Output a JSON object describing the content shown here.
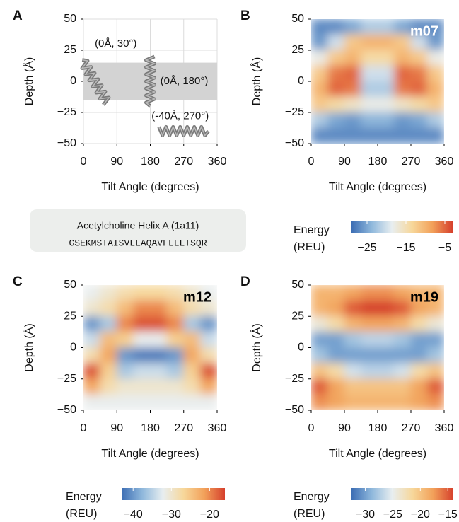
{
  "chart_data": [
    {
      "type": "helix-map",
      "panel": "A",
      "xlabel": "Tilt Angle (degrees)",
      "ylabel": "Depth (Å)",
      "xlim": [
        0,
        360
      ],
      "ylim": [
        -50,
        50
      ],
      "xticks": [
        0,
        90,
        180,
        270,
        360
      ],
      "yticks": [
        {
          "value": -50,
          "label": "−50"
        },
        {
          "value": -25,
          "label": "−25"
        },
        0,
        25,
        50
      ],
      "grid": true,
      "band": [
        -15,
        15
      ],
      "band_color": "#d3d3d3",
      "color": "#7a7a7a",
      "helices": [
        {
          "x": 30,
          "y": 0,
          "text": "(0Å, 30°)"
        },
        {
          "x": 180,
          "y": 0,
          "text": "(0Å, 180°)"
        },
        {
          "x": 270,
          "y": -40,
          "text": "(-40Å, 270°)"
        }
      ]
    },
    {
      "type": "heatmap",
      "panel": "B",
      "title": "m07",
      "title_color": "#ffffff",
      "xlabel": "Tilt Angle (degrees)",
      "ylabel": "Depth (Å)",
      "xlim": [
        0,
        360
      ],
      "ylim": [
        -50,
        50
      ],
      "xticks": [
        0,
        90,
        180,
        270,
        360
      ],
      "yticks": [
        {
          "value": -50,
          "label": "−50"
        },
        {
          "value": -25,
          "label": "−25"
        },
        0,
        25,
        50
      ],
      "x": [
        22.5,
        67.5,
        112.5,
        157.5,
        202.5,
        247.5,
        292.5,
        337.5
      ],
      "y": [
        43.75,
        31.25,
        18.75,
        6.25,
        -6.25,
        -18.75,
        -31.25,
        -43.75
      ],
      "values": [
        [
          -27,
          -27,
          -25,
          -22,
          -22,
          -25,
          -27,
          -27
        ],
        [
          -26,
          -20,
          -12,
          -10,
          -10,
          -12,
          -20,
          -26
        ],
        [
          -18,
          -12,
          -10,
          -14,
          -14,
          -10,
          -12,
          -18
        ],
        [
          -12,
          -6,
          -5,
          -20,
          -20,
          -5,
          -6,
          -12
        ],
        [
          -10,
          -5,
          -6,
          -22,
          -22,
          -6,
          -5,
          -10
        ],
        [
          -12,
          -14,
          -16,
          -18,
          -18,
          -16,
          -14,
          -12
        ],
        [
          -22,
          -25,
          -26,
          -24,
          -24,
          -26,
          -25,
          -22
        ],
        [
          -27,
          -27,
          -27,
          -27,
          -27,
          -27,
          -27,
          -27
        ]
      ],
      "colormap": [
        "#3d6eb4",
        "#8fb8dc",
        "#e8eef0",
        "#f7d79a",
        "#f2a15a",
        "#d6402c"
      ],
      "zlim": [
        -29,
        -3
      ],
      "colorbar_title": "Energy",
      "colorbar_unit": "(REU)",
      "cticks": [
        {
          "value": -25,
          "label": "−25"
        },
        {
          "value": -15,
          "label": "−15"
        },
        {
          "value": -5,
          "label": "−5"
        }
      ]
    },
    {
      "type": "heatmap",
      "panel": "C",
      "title": "m12",
      "title_color": "#000000",
      "xlabel": "Tilt Angle (degrees)",
      "ylabel": "Depth (Å)",
      "xlim": [
        0,
        360
      ],
      "ylim": [
        -50,
        50
      ],
      "xticks": [
        0,
        90,
        180,
        270,
        360
      ],
      "yticks": [
        {
          "value": -50,
          "label": "−50"
        },
        {
          "value": -25,
          "label": "−25"
        },
        0,
        25,
        50
      ],
      "x": [
        22.5,
        67.5,
        112.5,
        157.5,
        202.5,
        247.5,
        292.5,
        337.5
      ],
      "y": [
        43.75,
        31.25,
        18.75,
        6.25,
        -6.25,
        -18.75,
        -31.25,
        -43.75
      ],
      "values": [
        [
          -32,
          -30,
          -28,
          -27,
          -27,
          -28,
          -30,
          -32
        ],
        [
          -30,
          -28,
          -24,
          -20,
          -20,
          -24,
          -28,
          -30
        ],
        [
          -40,
          -36,
          -20,
          -17,
          -17,
          -20,
          -36,
          -40
        ],
        [
          -34,
          -24,
          -26,
          -32,
          -32,
          -26,
          -24,
          -34
        ],
        [
          -28,
          -22,
          -40,
          -42,
          -42,
          -40,
          -22,
          -28
        ],
        [
          -17,
          -26,
          -36,
          -34,
          -34,
          -36,
          -26,
          -17
        ],
        [
          -22,
          -28,
          -30,
          -30,
          -30,
          -30,
          -28,
          -22
        ],
        [
          -32,
          -32,
          -32,
          -32,
          -32,
          -32,
          -32,
          -32
        ]
      ],
      "colormap": [
        "#3d6eb4",
        "#8fb8dc",
        "#e8eef0",
        "#f7d79a",
        "#f2a15a",
        "#d6402c"
      ],
      "zlim": [
        -43,
        -16
      ],
      "colorbar_title": "Energy",
      "colorbar_unit": "(REU)",
      "cticks": [
        {
          "value": -40,
          "label": "−40"
        },
        {
          "value": -30,
          "label": "−30"
        },
        {
          "value": -20,
          "label": "−20"
        }
      ]
    },
    {
      "type": "heatmap",
      "panel": "D",
      "title": "m19",
      "title_color": "#000000",
      "xlabel": "Tilt Angle (degrees)",
      "ylabel": "Depth (Å)",
      "xlim": [
        0,
        360
      ],
      "ylim": [
        -50,
        50
      ],
      "xticks": [
        0,
        90,
        180,
        270,
        360
      ],
      "yticks": [
        {
          "value": -50,
          "label": "−50"
        },
        {
          "value": -25,
          "label": "−25"
        },
        0,
        25,
        50
      ],
      "x": [
        22.5,
        67.5,
        112.5,
        157.5,
        202.5,
        247.5,
        292.5,
        337.5
      ],
      "y": [
        43.75,
        31.25,
        18.75,
        6.25,
        -6.25,
        -18.75,
        -31.25,
        -43.75
      ],
      "values": [
        [
          -19,
          -19,
          -18,
          -17,
          -17,
          -18,
          -19,
          -19
        ],
        [
          -19,
          -18,
          -15,
          -14,
          -14,
          -15,
          -18,
          -19
        ],
        [
          -24,
          -22,
          -19,
          -18,
          -18,
          -19,
          -22,
          -24
        ],
        [
          -30,
          -30,
          -28,
          -27,
          -27,
          -28,
          -30,
          -30
        ],
        [
          -28,
          -30,
          -30,
          -30,
          -30,
          -30,
          -30,
          -28
        ],
        [
          -20,
          -22,
          -26,
          -27,
          -27,
          -26,
          -22,
          -20
        ],
        [
          -15,
          -18,
          -20,
          -20,
          -20,
          -20,
          -18,
          -15
        ],
        [
          -17,
          -18,
          -19,
          -19,
          -19,
          -19,
          -18,
          -17
        ]
      ],
      "colormap": [
        "#3d6eb4",
        "#8fb8dc",
        "#e8eef0",
        "#f7d79a",
        "#f2a15a",
        "#d6402c"
      ],
      "zlim": [
        -32.5,
        -14
      ],
      "colorbar_title": "Energy",
      "colorbar_unit": "(REU)",
      "cticks": [
        {
          "value": -30,
          "label": "−30"
        },
        {
          "value": -25,
          "label": "−25"
        },
        {
          "value": -20,
          "label": "−20"
        },
        {
          "value": -15,
          "label": "−15"
        }
      ]
    }
  ],
  "sequence_box": {
    "title": "Acetylcholine Helix A (1a11)",
    "sequence": "GSEKMSTAISVLLAQAVFLLLTSQR"
  }
}
